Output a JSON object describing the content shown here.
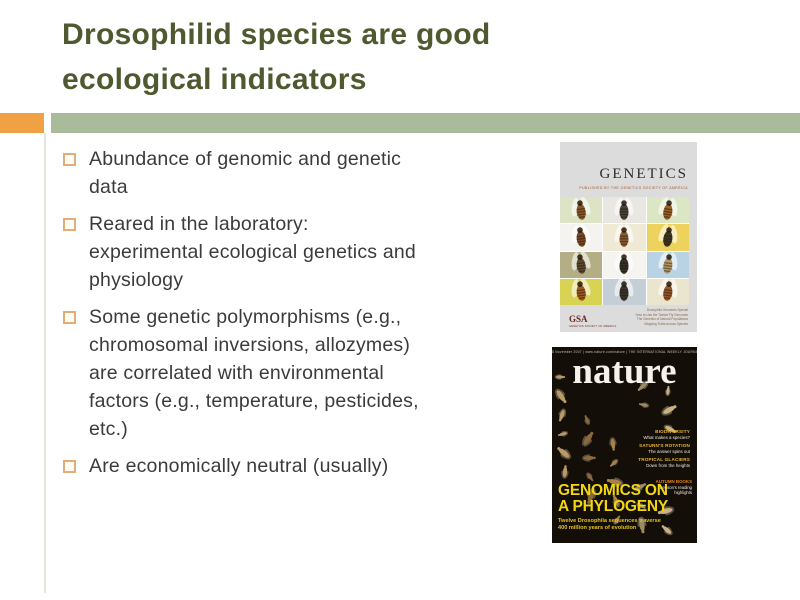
{
  "slide": {
    "title_lines": [
      "Drosophilid species are good",
      "ecological indicators"
    ],
    "bullets": [
      {
        "lines": [
          "Abundance of genomic and genetic",
          "data"
        ]
      },
      {
        "lines": [
          "Reared in the laboratory:",
          "experimental ecological genetics and",
          "physiology"
        ]
      },
      {
        "lines": [
          "Some genetic polymorphisms (e.g.,",
          "chromosomal inversions, allozymes)",
          "are correlated with environmental",
          "factors (e.g., temperature, pesticides,",
          "etc.)"
        ]
      },
      {
        "lines": [
          "Are economically neutral (usually)"
        ]
      }
    ]
  },
  "colors": {
    "title_olive": "#4E592F",
    "accent_orange": "#F0A144",
    "accent_green": "#A9BB9A",
    "bullet_border": "#E3AD74",
    "body_text": "#3B3B3B",
    "genetics_bg": "#DCDCDC",
    "nature_bg": "#130F08",
    "nature_yellow": "#F2D710",
    "nature_orange": "#E58119"
  },
  "genetics_cover": {
    "title": "GENETICS",
    "subtitle": "PUBLISHED BY THE GENETICS SOCIETY OF AMERICA",
    "logo": "GSA",
    "logo_sub": "GENETICS SOCIETY OF AMERICA",
    "footer_lines": [
      "Drosophila Genomes Special",
      "How to Use the Twelve Fly Genomes",
      "The Genetics of Natural Populations",
      "Mapping Traits Across Species"
    ],
    "grid_cells": [
      {
        "bg": "#dde4c6",
        "fly": "#8a5a28"
      },
      {
        "bg": "#e9e7e1",
        "fly": "#4a4438"
      },
      {
        "bg": "#dbe6c4",
        "fly": "#9a6228"
      },
      {
        "bg": "#f4f3ef",
        "fly": "#7a4a26"
      },
      {
        "bg": "#efe9d6",
        "fly": "#8a5a30"
      },
      {
        "bg": "#eed25e",
        "fly": "#3f3524"
      },
      {
        "bg": "#b3ae85",
        "fly": "#5a4a30"
      },
      {
        "bg": "#f6f4f1",
        "fly": "#33302a"
      },
      {
        "bg": "#b9d2e4",
        "fly": "#b49a6a"
      },
      {
        "bg": "#d9d354",
        "fly": "#a05a20"
      },
      {
        "bg": "#c4ced6",
        "fly": "#3a342c"
      },
      {
        "bg": "#ece5cd",
        "fly": "#96562a"
      }
    ]
  },
  "nature_cover": {
    "masthead_top": "8 November 2007 | www.nature.com/nature | THE INTERNATIONAL WEEKLY JOURNAL OF SCIENCE",
    "wordmark": "nature",
    "teasers": [
      {
        "heading": "BIODIVERSITY",
        "sub": "What makes a species?"
      },
      {
        "heading": "SATURN'S ROTATION",
        "sub": "The answer spins out"
      },
      {
        "heading": "TROPICAL GLACIERS",
        "sub": "Down from the heights"
      }
    ],
    "jobs_heading": "AUTUMN BOOKS",
    "jobs_lines": [
      "Season's reading",
      "highlights"
    ],
    "headline_lines": [
      "GENOMICS ON",
      "A PHYLOGENY"
    ],
    "subhead_lines": [
      "Twelve Drosophila sequences traverse",
      "400 million years of evolution"
    ]
  }
}
